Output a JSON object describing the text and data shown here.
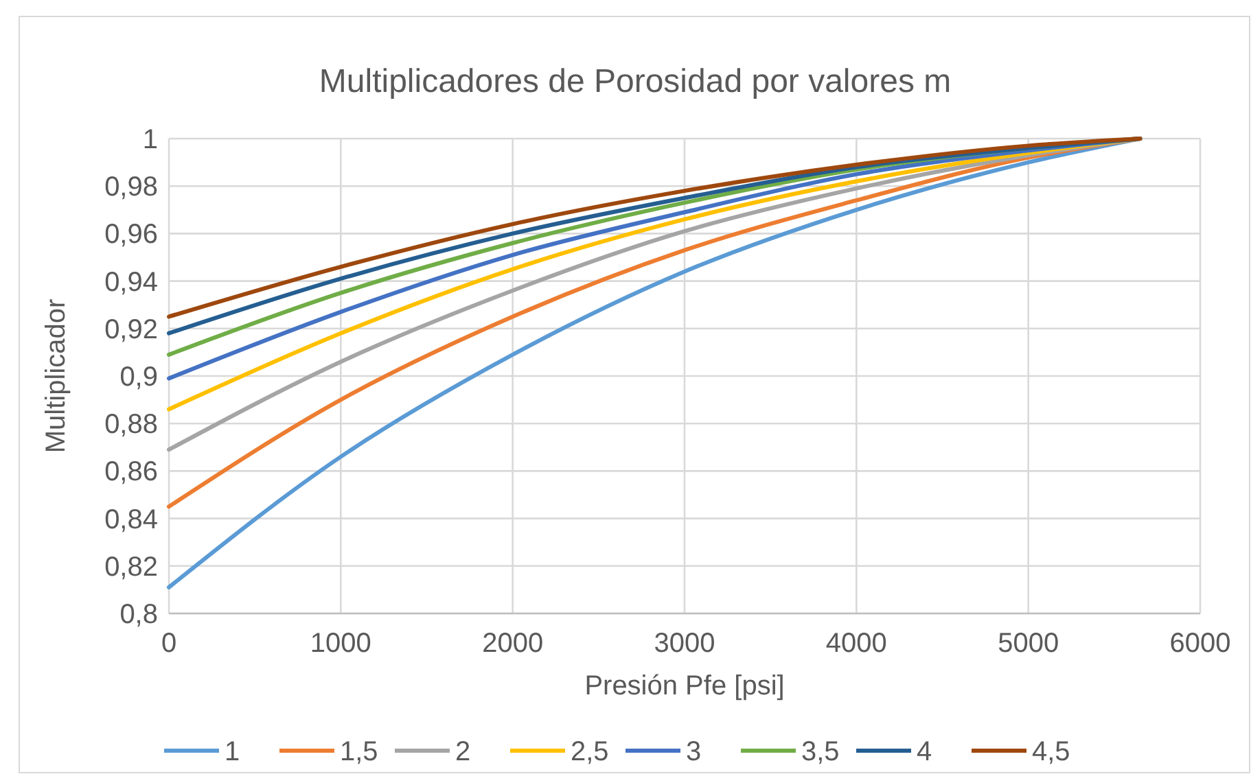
{
  "chart_data": {
    "type": "line",
    "title": "Multiplicadores de Porosidad por valores m",
    "xlabel": "Presión Pfe [psi]",
    "ylabel": "Multiplicador",
    "x": [
      0,
      1000,
      2000,
      3000,
      4000,
      5000,
      5650
    ],
    "series": [
      {
        "name": "1",
        "color": "#5b9bd5",
        "values": [
          0.811,
          0.866,
          0.909,
          0.944,
          0.97,
          0.99,
          1
        ]
      },
      {
        "name": "1,5",
        "color": "#ed7d31",
        "values": [
          0.845,
          0.89,
          0.925,
          0.953,
          0.974,
          0.992,
          1
        ]
      },
      {
        "name": "2",
        "color": "#a5a5a5",
        "values": [
          0.869,
          0.906,
          0.936,
          0.961,
          0.979,
          0.993,
          1
        ]
      },
      {
        "name": "2,5",
        "color": "#ffc000",
        "values": [
          0.886,
          0.918,
          0.945,
          0.966,
          0.982,
          0.994,
          1
        ]
      },
      {
        "name": "3",
        "color": "#4472c4",
        "values": [
          0.899,
          0.927,
          0.951,
          0.969,
          0.985,
          0.995,
          1
        ]
      },
      {
        "name": "3,5",
        "color": "#70ad47",
        "values": [
          0.909,
          0.935,
          0.956,
          0.973,
          0.987,
          0.996,
          1
        ]
      },
      {
        "name": "4",
        "color": "#255e91",
        "values": [
          0.918,
          0.941,
          0.96,
          0.975,
          0.988,
          0.996,
          1
        ]
      },
      {
        "name": "4,5",
        "color": "#9e480e",
        "values": [
          0.925,
          0.946,
          0.964,
          0.978,
          0.989,
          0.997,
          1
        ]
      }
    ],
    "xlim": [
      0,
      6000
    ],
    "xticks": [
      0,
      1000,
      2000,
      3000,
      4000,
      5000,
      6000
    ],
    "ylim": [
      0.8,
      1
    ],
    "yticks": [
      {
        "value": 0.8,
        "label": "0,8"
      },
      {
        "value": 0.82,
        "label": "0,82"
      },
      {
        "value": 0.84,
        "label": "0,84"
      },
      {
        "value": 0.86,
        "label": "0,86"
      },
      {
        "value": 0.88,
        "label": "0,88"
      },
      {
        "value": 0.9,
        "label": "0,9"
      },
      {
        "value": 0.92,
        "label": "0,92"
      },
      {
        "value": 0.94,
        "label": "0,94"
      },
      {
        "value": 0.96,
        "label": "0,96"
      },
      {
        "value": 0.98,
        "label": "0,98"
      },
      {
        "value": 1,
        "label": "1"
      }
    ],
    "grid": true,
    "legend": "bottom",
    "marker": "none",
    "line_style": "solid"
  }
}
